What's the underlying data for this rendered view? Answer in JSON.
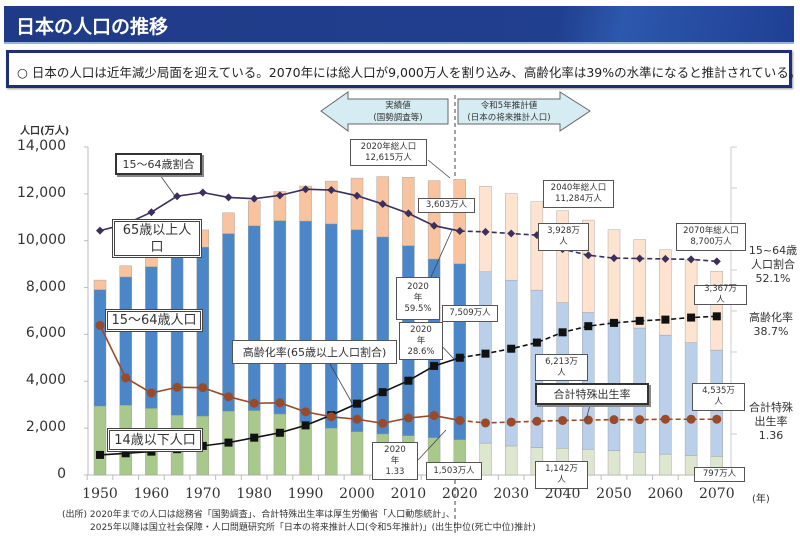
{
  "header": {
    "title": "日本の人口の推移"
  },
  "summary": "○ 日本の人口は近年減少局面を迎えている。2070年には総人口が9,000万人を割り込み、高齢化率は39%の水準になると推計されている。",
  "chart_data": {
    "type": "bar",
    "ylabel": "人口(万人)",
    "xlabel": "(年)",
    "ylim": [
      0,
      14000
    ],
    "y2lim": [
      0,
      80
    ],
    "yticks": [
      "0",
      "2,000",
      "4,000",
      "6,000",
      "8,000",
      "10,000",
      "12,000",
      "14,000"
    ],
    "xticks": [
      "1950",
      "1960",
      "1970",
      "1980",
      "1990",
      "2000",
      "2010",
      "2020",
      "2030",
      "2040",
      "2050",
      "2060",
      "2070"
    ],
    "stacked": true,
    "projection_from": 2025,
    "categories": [
      1950,
      1955,
      1960,
      1965,
      1970,
      1975,
      1980,
      1985,
      1990,
      1995,
      2000,
      2005,
      2010,
      2015,
      2020,
      2025,
      2030,
      2035,
      2040,
      2045,
      2050,
      2055,
      2060,
      2065,
      2070
    ],
    "series": [
      {
        "name": "14歳以下人口",
        "color": "#a9c88c",
        "projection_color": "#dde7cf",
        "values": [
          2943,
          2980,
          2843,
          2553,
          2515,
          2722,
          2751,
          2603,
          2249,
          2001,
          1847,
          1752,
          1680,
          1589,
          1503,
          1363,
          1240,
          1169,
          1142,
          1103,
          1041,
          966,
          893,
          836,
          797
        ]
      },
      {
        "name": "15～64歳人口",
        "color": "#4a86c8",
        "projection_color": "#b9cfea",
        "values": [
          4966,
          5473,
          6047,
          6744,
          7212,
          7581,
          7884,
          8251,
          8590,
          8716,
          8622,
          8409,
          8103,
          7629,
          7509,
          7310,
          7076,
          6722,
          6213,
          5832,
          5540,
          5307,
          5078,
          4809,
          4535
        ]
      },
      {
        "name": "65歳以上人口",
        "color": "#f8c4a0",
        "projection_color": "#fde3d0",
        "values": [
          411,
          475,
          535,
          618,
          733,
          887,
          1065,
          1247,
          1493,
          1828,
          2204,
          2576,
          2925,
          3347,
          3603,
          3653,
          3696,
          3773,
          3928,
          3945,
          3888,
          3780,
          3644,
          3532,
          3367
        ]
      }
    ],
    "lines": [
      {
        "name": "15～64歳割合",
        "unit": "%",
        "color": "#3b2f5e",
        "marker": "diamond",
        "values": [
          59.6,
          61.2,
          64.1,
          68.0,
          68.9,
          67.7,
          67.4,
          68.2,
          69.7,
          69.5,
          68.1,
          66.1,
          63.8,
          60.8,
          59.5,
          59.3,
          58.9,
          58.5,
          55.1,
          53.6,
          52.9,
          52.8,
          52.7,
          52.6,
          52.1
        ]
      },
      {
        "name": "高齢化率(65歳以上人口割合)",
        "unit": "%",
        "color": "#111111",
        "marker": "square",
        "values": [
          4.9,
          5.3,
          5.7,
          6.3,
          7.1,
          7.9,
          9.1,
          10.3,
          12.1,
          14.6,
          17.4,
          20.2,
          23.0,
          26.6,
          28.6,
          29.6,
          30.8,
          32.3,
          34.8,
          36.3,
          37.1,
          37.6,
          37.9,
          38.4,
          38.7
        ]
      },
      {
        "name": "合計特殊出生率",
        "unit": "×10 on right axis",
        "color": "#9a4a28",
        "marker": "circle",
        "values": [
          3.65,
          2.37,
          2.0,
          2.14,
          2.13,
          1.91,
          1.75,
          1.76,
          1.54,
          1.42,
          1.36,
          1.26,
          1.39,
          1.45,
          1.33,
          1.27,
          1.29,
          1.31,
          1.33,
          1.34,
          1.35,
          1.35,
          1.36,
          1.36,
          1.36
        ]
      }
    ],
    "period_labels": {
      "actual": "実績値\n(国勢調査等)",
      "projection": "令和5年推計値\n(日本の将来推計人口)"
    },
    "series_labels": {
      "ratio_1564": "15～64歳割合",
      "pop65": "65歳以上人\n口",
      "pop1564": "15～64歳人口",
      "pop14": "14歳以下人口",
      "aging": "高齢化率(65歳以上人口割合)",
      "tfr": "合計特殊出生率"
    },
    "annotations": {
      "total2020": "2020年総人口\n12,615万人",
      "p65_2020": "3,603万人",
      "ratio2020": "2020\n年\n59.5%",
      "p1564_2020": "7,509万人",
      "aging2020": "2020\n年\n28.6%",
      "tfr2020": "2020\n年\n1.33",
      "p14_2020": "1,503万人",
      "total2040": "2040年総人口\n11,284万人",
      "p65_2040": "3,928万\n人",
      "p1564_2040": "6,213万\n人",
      "p14_2040": "1,142万\n人",
      "total2070": "2070年総人口\n8,700万人",
      "p65_2070": "3,367万\n人",
      "p1564_2070": "4,535万\n人",
      "p14_2070": "797万人",
      "right_ratio": "15~64歳\n人口割合\n52.1%",
      "right_aging": "高齢化率\n38.7%",
      "right_tfr": "合計特殊\n出生率\n1.36"
    }
  },
  "source": {
    "line1": "(出所) 2020年までの人口は総務省「国勢調査」、合計特殊出生率は厚生労働省「人口動態統計」、",
    "line2": "2025年以降は国立社会保障・人口問題研究所「日本の将来推計人口(令和5年推計)」(出生中位(死亡中位)推計)"
  }
}
